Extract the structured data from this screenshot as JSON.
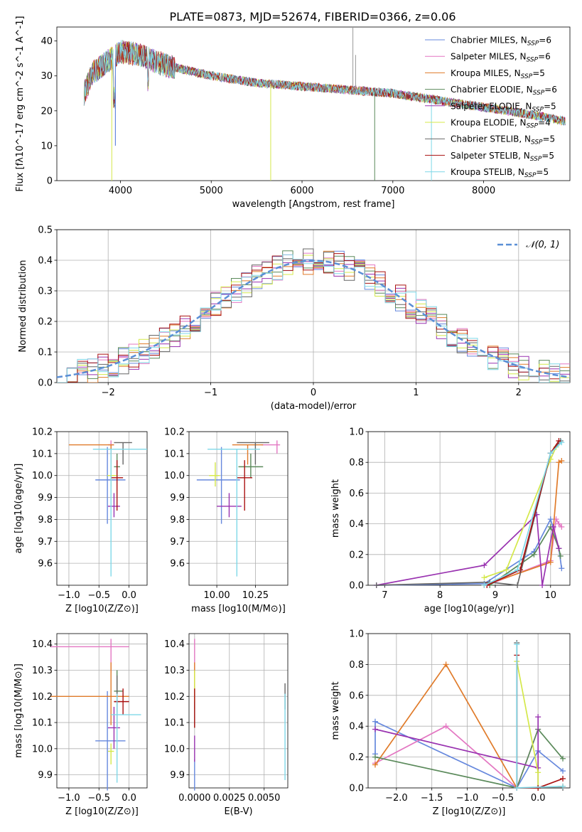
{
  "title": "PLATE=0873, MJD=52674, FIBERID=0366, z=0.06",
  "legend_models": [
    "Chabrier MILES, N_SSP=6",
    "Salpeter MILES, N_SSP=6",
    "Kroupa MILES, N_SSP=5",
    "Chabrier ELODIE, N_SSP=6",
    "Salpeter ELODIE, N_SSP=5",
    "Kroupa ELODIE, N_SSP=4",
    "Chabrier STELIB, N_SSP=5",
    "Salpeter STELIB, N_SSP=5",
    "Kroupa STELIB, N_SSP=5"
  ],
  "colors": [
    "#6688dd",
    "#e377c2",
    "#e07b2a",
    "#5b8a5b",
    "#9932b0",
    "#d4e84a",
    "#666666",
    "#aa1111",
    "#7fd8e8"
  ],
  "chart_data": [
    {
      "type": "line",
      "name": "spectrum",
      "xlabel": "wavelength [Angstrom, rest frame]",
      "ylabel": "Flux [fλ10^-17 erg cm^-2 s^-1 A^-1]",
      "xlim": [
        3300,
        8950
      ],
      "ylim": [
        0,
        44
      ],
      "xticks": [
        4000,
        5000,
        6000,
        7000,
        8000
      ],
      "yticks": [
        0,
        10,
        20,
        30,
        40
      ],
      "continuum": {
        "x": [
          3600,
          3700,
          3800,
          3900,
          4000,
          4200,
          4500,
          5000,
          5500,
          6000,
          6500,
          7000,
          7500,
          8000,
          8500,
          8900
        ],
        "y": [
          25,
          31,
          33,
          35,
          37,
          36,
          33,
          30,
          28,
          27,
          26,
          25,
          23,
          21,
          19,
          17
        ]
      },
      "legend_position": "upper right",
      "grid": false
    },
    {
      "type": "line",
      "name": "residual-histogram",
      "xlabel": "(data-model)/error",
      "ylabel": "Normed distribution",
      "xlim": [
        -2.5,
        2.5
      ],
      "ylim": [
        0,
        0.5
      ],
      "xticks": [
        -2,
        -1,
        0,
        1,
        2
      ],
      "yticks": [
        0.0,
        0.1,
        0.2,
        0.3,
        0.4,
        0.5
      ],
      "bin_width": 0.1,
      "reference_curve": "N(0,1)",
      "legend_label": "𝒩(0, 1)",
      "legend_position": "upper right",
      "grid": true
    },
    {
      "type": "scatter",
      "name": "age-vs-Z",
      "xlabel": "Z [log10(Z/Z⊙)]",
      "ylabel": "age [log10(age/yr)]",
      "xlim": [
        -1.2,
        0.3
      ],
      "ylim": [
        9.5,
        10.2
      ],
      "xticks": [
        -1.0,
        -0.5,
        0.0
      ],
      "yticks": [
        9.6,
        9.7,
        9.8,
        9.9,
        10.0,
        10.1,
        10.2
      ],
      "points": [
        {
          "x": -0.36,
          "y": 9.98,
          "xerr": [
            0.2,
            0.3
          ],
          "yerr": [
            0.2,
            0.15
          ]
        },
        {
          "x": -0.3,
          "y": 10.14,
          "xerr": [
            0.05,
            0.05
          ],
          "yerr": [
            0.04,
            0.02
          ]
        },
        {
          "x": -0.3,
          "y": 10.14,
          "xerr": [
            0.7,
            0.05
          ],
          "yerr": [
            0.09,
            0.0
          ]
        },
        {
          "x": -0.2,
          "y": 10.04,
          "xerr": [
            0.05,
            0.05
          ],
          "yerr": [
            0.05,
            0.06
          ]
        },
        {
          "x": -0.25,
          "y": 9.86,
          "xerr": [
            0.1,
            0.1
          ],
          "yerr": [
            0.05,
            0.06
          ]
        },
        {
          "x": -0.3,
          "y": 10.0,
          "xerr": [
            0.06,
            0.1
          ],
          "yerr": [
            0.05,
            0.06
          ]
        },
        {
          "x": -0.1,
          "y": 10.15,
          "xerr": [
            0.15,
            0.15
          ],
          "yerr": [
            0.1,
            0.0
          ]
        },
        {
          "x": -0.2,
          "y": 9.99,
          "xerr": [
            0.1,
            0.1
          ],
          "yerr": [
            0.15,
            0.08
          ]
        },
        {
          "x": -0.3,
          "y": 10.12,
          "xerr": [
            0.3,
            0.6
          ],
          "yerr": [
            0.58,
            0.0
          ]
        }
      ],
      "grid": true
    },
    {
      "type": "scatter",
      "name": "age-vs-mass",
      "xlabel": "mass [log10(M/M⊙)]",
      "ylabel": "",
      "xlim": [
        9.82,
        10.46
      ],
      "ylim": [
        9.5,
        10.2
      ],
      "xticks": [
        10.0,
        10.25
      ],
      "yticks": [
        9.6,
        9.7,
        9.8,
        9.9,
        10.0,
        10.1,
        10.2
      ],
      "points": [
        {
          "x": 10.03,
          "y": 9.98,
          "xerr": [
            0.16,
            0.12
          ],
          "yerr": [
            0.2,
            0.15
          ]
        },
        {
          "x": 10.39,
          "y": 10.14,
          "xerr": [
            0.1,
            0.02
          ],
          "yerr": [
            0.04,
            0.02
          ]
        },
        {
          "x": 10.2,
          "y": 10.14,
          "xerr": [
            0.1,
            0.1
          ],
          "yerr": [
            0.09,
            0.0
          ]
        },
        {
          "x": 10.22,
          "y": 10.04,
          "xerr": [
            0.08,
            0.08
          ],
          "yerr": [
            0.05,
            0.06
          ]
        },
        {
          "x": 10.08,
          "y": 9.86,
          "xerr": [
            0.08,
            0.08
          ],
          "yerr": [
            0.05,
            0.06
          ]
        },
        {
          "x": 9.99,
          "y": 10.0,
          "xerr": [
            0.04,
            0.03
          ],
          "yerr": [
            0.05,
            0.06
          ]
        },
        {
          "x": 10.25,
          "y": 10.15,
          "xerr": [
            0.12,
            0.09
          ],
          "yerr": [
            0.1,
            0.0
          ]
        },
        {
          "x": 10.18,
          "y": 9.99,
          "xerr": [
            0.05,
            0.05
          ],
          "yerr": [
            0.15,
            0.08
          ]
        },
        {
          "x": 10.13,
          "y": 10.12,
          "xerr": [
            0.19,
            0.15
          ],
          "yerr": [
            0.58,
            0.0
          ]
        }
      ],
      "grid": true
    },
    {
      "type": "line",
      "name": "mass-weight-vs-age",
      "xlabel": "age [log10(age/yr)]",
      "ylabel": "mass weight",
      "xlim": [
        6.7,
        10.35
      ],
      "ylim": [
        0,
        1
      ],
      "xticks": [
        7,
        8,
        9,
        10
      ],
      "yticks": [
        0.0,
        0.2,
        0.4,
        0.6,
        0.8,
        1.0
      ],
      "series": [
        {
          "x": [
            6.85,
            8.8,
            9.7,
            10.0,
            10.15,
            10.2
          ],
          "y": [
            0.0,
            0.01,
            0.22,
            0.43,
            0.24,
            0.11
          ]
        },
        {
          "x": [
            8.85,
            10.0,
            10.1,
            10.15,
            10.2
          ],
          "y": [
            0.0,
            0.16,
            0.43,
            0.4,
            0.38
          ]
        },
        {
          "x": [
            8.8,
            10.0,
            10.15,
            10.2
          ],
          "y": [
            0.0,
            0.15,
            0.8,
            0.81
          ]
        },
        {
          "x": [
            8.9,
            9.7,
            10.0,
            10.15,
            10.18
          ],
          "y": [
            0.0,
            0.2,
            0.38,
            0.24,
            0.19
          ]
        },
        {
          "x": [
            6.85,
            8.8,
            9.75,
            9.85,
            10.05,
            10.15
          ],
          "y": [
            0.0,
            0.13,
            0.46,
            0.0,
            0.38,
            0.24
          ]
        },
        {
          "x": [
            8.8,
            9.2,
            10.0,
            10.1
          ],
          "y": [
            0.05,
            0.1,
            0.82,
            0.9
          ]
        },
        {
          "x": [
            6.85,
            8.9,
            9.4,
            10.0,
            10.18
          ],
          "y": [
            0.0,
            0.02,
            0.0,
            0.86,
            0.94
          ]
        },
        {
          "x": [
            8.85,
            9.45,
            10.0,
            10.15
          ],
          "y": [
            0.0,
            0.1,
            0.86,
            0.94
          ]
        },
        {
          "x": [
            8.8,
            9.4,
            10.0,
            10.2
          ],
          "y": [
            0.0,
            0.1,
            0.86,
            0.93
          ]
        }
      ],
      "grid": true
    },
    {
      "type": "scatter",
      "name": "mass-vs-Z",
      "xlabel": "Z [log10(Z/Z⊙)]",
      "ylabel": "mass [log10(M/M⊙)]",
      "xlim": [
        -1.2,
        0.3
      ],
      "ylim": [
        9.85,
        10.44
      ],
      "xticks": [
        -1.0,
        -0.5,
        0.0
      ],
      "yticks": [
        9.9,
        10.0,
        10.1,
        10.2,
        10.3,
        10.4
      ],
      "points": [
        {
          "x": -0.36,
          "y": 10.03,
          "xerr": [
            0.2,
            0.3
          ],
          "yerr": [
            0.19,
            0.19
          ]
        },
        {
          "x": -0.3,
          "y": 10.39,
          "xerr": [
            1.0,
            0.3
          ],
          "yerr": [
            0.1,
            0.03
          ]
        },
        {
          "x": -0.3,
          "y": 10.2,
          "xerr": [
            1.0,
            0.3
          ],
          "yerr": [
            0.11,
            0.13
          ]
        },
        {
          "x": -0.2,
          "y": 10.22,
          "xerr": [
            0.05,
            0.1
          ],
          "yerr": [
            0.08,
            0.08
          ]
        },
        {
          "x": -0.25,
          "y": 10.08,
          "xerr": [
            0.1,
            0.1
          ],
          "yerr": [
            0.08,
            0.08
          ]
        },
        {
          "x": -0.3,
          "y": 9.99,
          "xerr": [
            0.05,
            0.05
          ],
          "yerr": [
            0.05,
            0.03
          ]
        },
        {
          "x": -0.2,
          "y": 10.18,
          "xerr": [
            0.05,
            0.05
          ],
          "yerr": [
            0.1,
            0.1
          ]
        },
        {
          "x": -0.1,
          "y": 10.18,
          "xerr": [
            0.15,
            0.1
          ],
          "yerr": [
            0.05,
            0.05
          ]
        },
        {
          "x": -0.2,
          "y": 10.13,
          "xerr": [
            0.1,
            0.4
          ],
          "yerr": [
            0.26,
            0.08
          ]
        }
      ],
      "grid": true
    },
    {
      "type": "scatter",
      "name": "mass-vs-ebv",
      "xlabel": "E(B-V)",
      "ylabel": "",
      "xlim": [
        -0.0004,
        0.0067
      ],
      "ylim": [
        9.85,
        10.44
      ],
      "xticks": [
        0.0,
        0.0025,
        0.005
      ],
      "xticklabels": [
        "0.0000",
        "0.0025",
        "0.0050"
      ],
      "yticks": [
        9.9,
        10.0,
        10.1,
        10.2,
        10.3,
        10.4
      ],
      "points": [
        {
          "x": 0.0,
          "y": 9.9,
          "yerr": [
            0.06,
            0.06
          ]
        },
        {
          "x": 0.0,
          "y": 10.35,
          "yerr": [
            0.06,
            0.07
          ]
        },
        {
          "x": 0.0,
          "y": 10.25,
          "yerr": [
            0.1,
            0.08
          ]
        },
        {
          "x": 0.0,
          "y": 10.15,
          "yerr": [
            0.07,
            0.08
          ]
        },
        {
          "x": 0.0,
          "y": 10.0,
          "yerr": [
            0.05,
            0.05
          ]
        },
        {
          "x": 0.0,
          "y": 10.24,
          "yerr": [
            0.06,
            0.06
          ]
        },
        {
          "x": 0.0065,
          "y": 10.2,
          "yerr": [
            0.05,
            0.05
          ]
        },
        {
          "x": 0.0,
          "y": 10.15,
          "yerr": [
            0.07,
            0.08
          ]
        },
        {
          "x": 0.0065,
          "y": 10.05,
          "yerr": [
            0.17,
            0.16
          ]
        }
      ],
      "grid": true
    },
    {
      "type": "line",
      "name": "mass-weight-vs-Z",
      "xlabel": "Z [log10(Z/Z⊙)]",
      "ylabel": "mass weight",
      "xlim": [
        -2.4,
        0.45
      ],
      "ylim": [
        0,
        1
      ],
      "xticks": [
        -2.0,
        -1.5,
        -1.0,
        -0.5,
        0.0
      ],
      "yticks": [
        0.0,
        0.2,
        0.4,
        0.6,
        0.8,
        1.0
      ],
      "series": [
        {
          "x": [
            -2.3,
            -2.3,
            -0.3,
            0.0,
            0.35
          ],
          "y": [
            0.22,
            0.43,
            0.0,
            0.24,
            0.11
          ]
        },
        {
          "x": [
            -2.3,
            -1.3,
            -0.3,
            0.0
          ],
          "y": [
            0.16,
            0.4,
            0.0,
            0.38
          ]
        },
        {
          "x": [
            -2.3,
            -1.3,
            -0.3,
            0.0,
            0.35
          ],
          "y": [
            0.15,
            0.8,
            0.0,
            0.0,
            0.01
          ]
        },
        {
          "x": [
            -2.3,
            -0.3,
            0.0,
            0.35
          ],
          "y": [
            0.2,
            0.0,
            0.38,
            0.19
          ]
        },
        {
          "x": [
            -2.3,
            0.0,
            0.0,
            0.0
          ],
          "y": [
            0.38,
            0.13,
            0.46,
            0.0
          ]
        },
        {
          "x": [
            -0.3,
            0.0,
            0.0
          ],
          "y": [
            0.82,
            0.1,
            0.0
          ]
        },
        {
          "x": [
            -0.3,
            -0.3,
            0.35
          ],
          "y": [
            0.94,
            0.0,
            0.0
          ]
        },
        {
          "x": [
            -0.3,
            -0.3,
            0.0,
            0.35
          ],
          "y": [
            0.86,
            0.0,
            0.0,
            0.06
          ]
        },
        {
          "x": [
            -0.3,
            -0.3,
            0.35
          ],
          "y": [
            0.93,
            0.0,
            0.01
          ]
        }
      ],
      "grid": true
    }
  ]
}
